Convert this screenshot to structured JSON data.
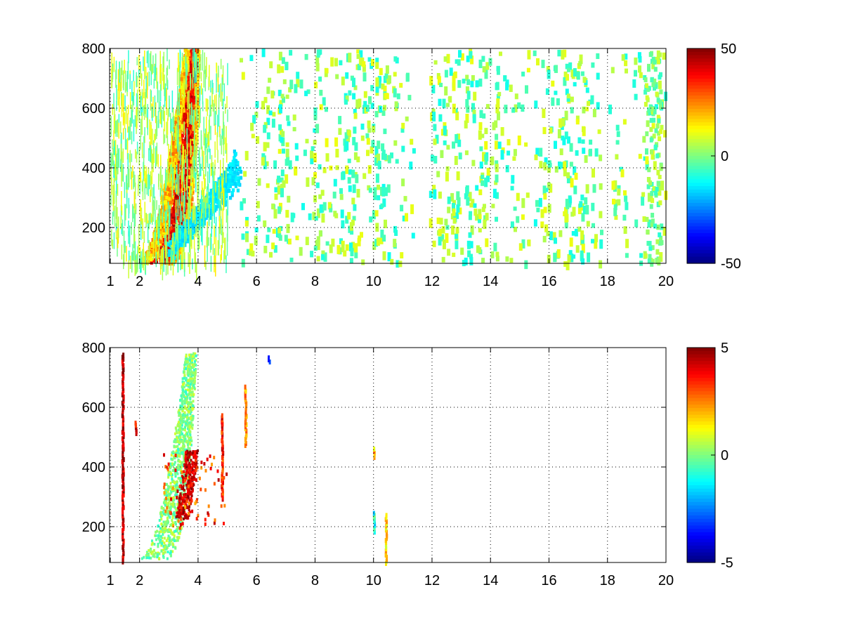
{
  "chart_data": [
    {
      "type": "heatmap",
      "title": "",
      "xlabel": "",
      "ylabel": "",
      "xlim": [
        0.975,
        20.0
      ],
      "ylim": [
        80,
        800
      ],
      "x_ticks": [
        "1",
        "2",
        "4",
        "6",
        "8",
        "10",
        "12",
        "14",
        "16",
        "18",
        "20"
      ],
      "y_ticks": [
        "200",
        "400",
        "600",
        "800"
      ],
      "colorbar": {
        "min": -50,
        "max": 50,
        "ticks": [
          "50",
          "0",
          "-50"
        ],
        "colormap": "jet"
      },
      "grid": true,
      "description_of_pattern": "dense curved band of positive values from (2.5,100) rising to (3.8,800); negative branch from (3,150) to (5.3,380); sparse small near-zero patches across x 5 to 20"
    },
    {
      "type": "heatmap",
      "title": "",
      "xlabel": "",
      "ylabel": "",
      "xlim": [
        0.975,
        20.0
      ],
      "ylim": [
        80,
        800
      ],
      "x_ticks": [
        "1",
        "2",
        "4",
        "6",
        "8",
        "10",
        "12",
        "14",
        "16",
        "18",
        "20"
      ],
      "y_ticks": [
        "200",
        "400",
        "600",
        "800"
      ],
      "colorbar": {
        "min": -5,
        "max": 5,
        "ticks": [
          "5",
          "0",
          "-5"
        ],
        "colormap": "jet"
      },
      "grid": true,
      "description_of_pattern": "sparse curved band from (2.3,100) to (3.8,780) with strong positive values near x 3.8-4.0, y 230-450; isolated streaks near x 1.4, 5.6, 6.4, 10.0, 10.4"
    }
  ],
  "colors": {
    "jet": [
      "#00008f",
      "#0000ff",
      "#0080ff",
      "#00ffff",
      "#80ff80",
      "#ffff00",
      "#ff8000",
      "#ff0000",
      "#800000"
    ],
    "axis": "#000000",
    "grid": "#000000",
    "background": "#ffffff"
  }
}
